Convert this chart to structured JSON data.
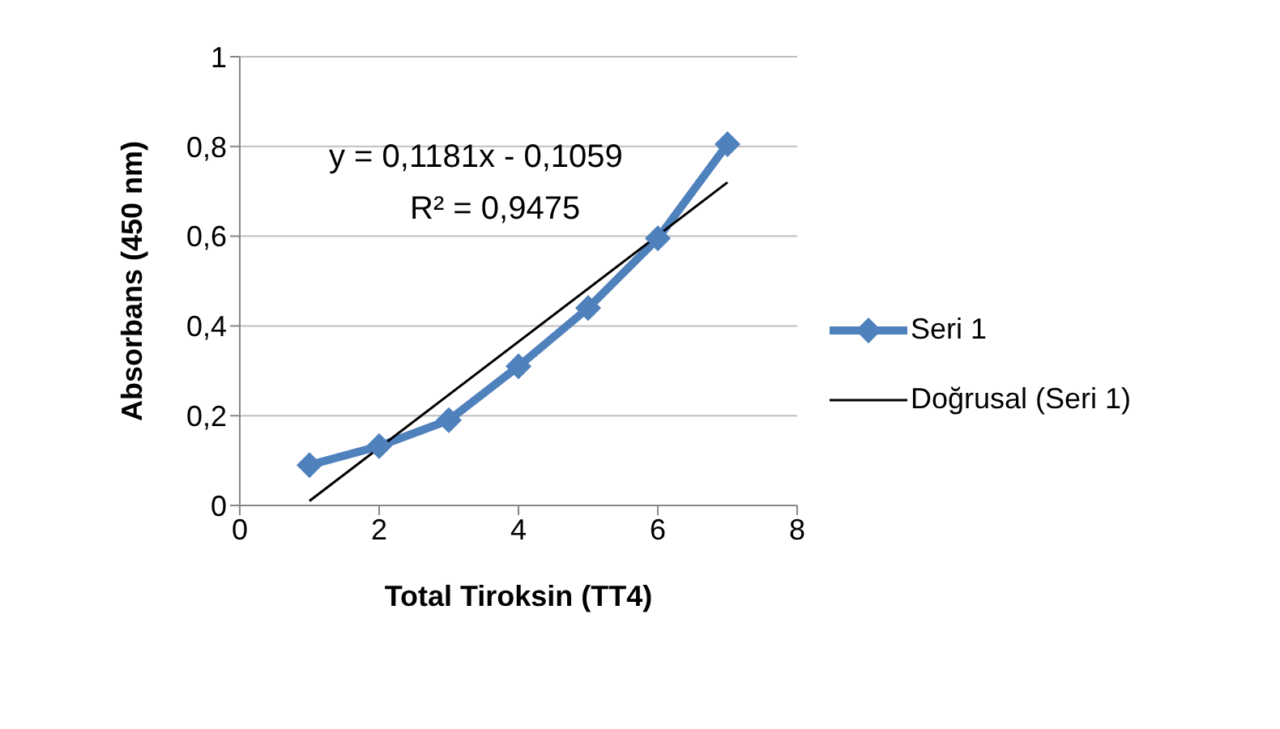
{
  "chart_data": {
    "type": "line",
    "xlabel": "Total Tiroksin (TT4)",
    "ylabel": "Absorbans (450 nm)",
    "xlim": [
      0,
      8
    ],
    "xticks": [
      0,
      2,
      4,
      6,
      8
    ],
    "ylim": [
      0,
      1
    ],
    "yticks": [
      {
        "value": 0,
        "label": "0"
      },
      {
        "value": 0.2,
        "label": "0,2"
      },
      {
        "value": 0.4,
        "label": "0,4"
      },
      {
        "value": 0.6,
        "label": "0,6"
      },
      {
        "value": 0.8,
        "label": "0,8"
      },
      {
        "value": 1,
        "label": "1"
      }
    ],
    "grid": "y",
    "legend": "right",
    "x": [
      1,
      2,
      3,
      4,
      5,
      6,
      7
    ],
    "series": [
      {
        "name": "Seri 1",
        "color": "#4f81bd",
        "marker": "diamond",
        "values": [
          0.09,
          0.132,
          0.19,
          0.31,
          0.44,
          0.595,
          0.805
        ]
      },
      {
        "name": "Doğrusal (Seri 1)",
        "color": "#000000",
        "marker": "none",
        "x": [
          1,
          7
        ],
        "values": [
          0.01,
          0.72
        ]
      }
    ],
    "annotations": [
      "y = 0,1181x - 0,1059",
      "R² = 0,9475"
    ]
  }
}
